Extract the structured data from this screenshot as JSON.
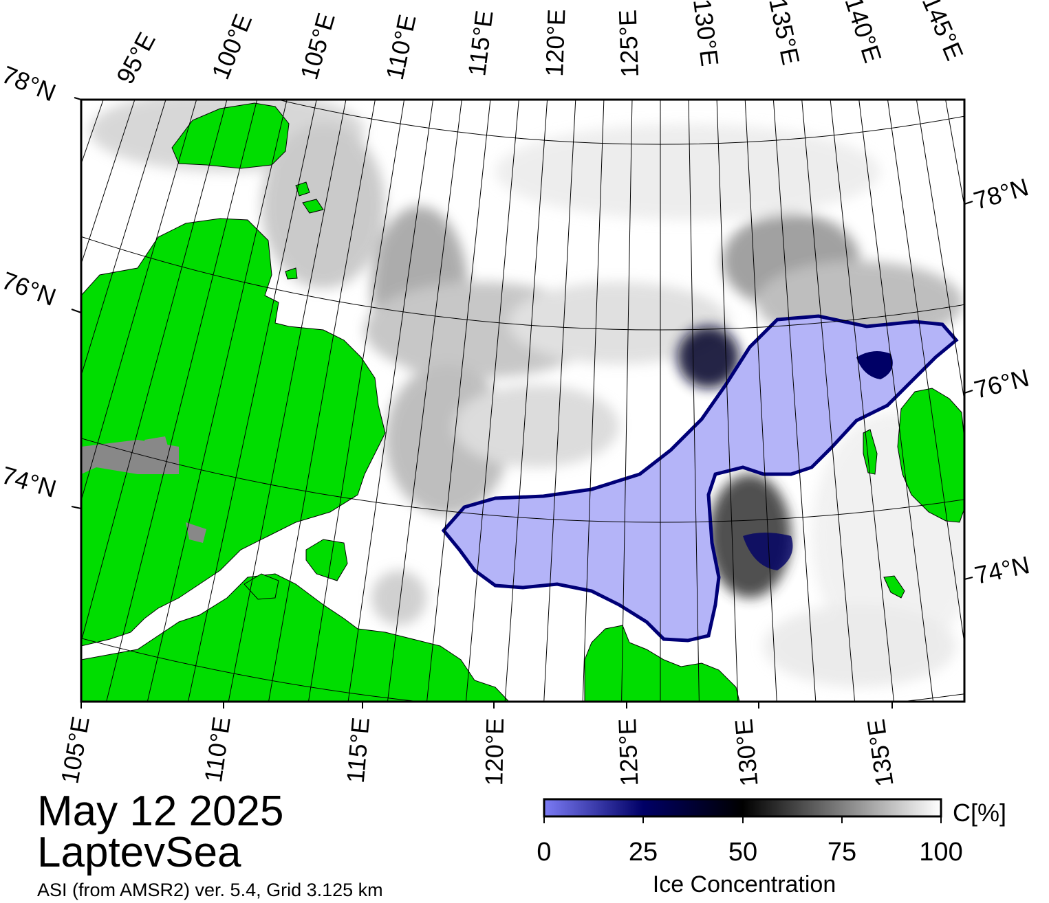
{
  "map": {
    "region": "LaptevSea",
    "date": "May 12 2025",
    "source": "ASI (from AMSR2) ver. 5.4,  Grid 3.125 km",
    "land_color": "#00dd00",
    "coast_mask_color": "#888888",
    "water_color": "#ffffff",
    "top_lon_labels": [
      "95°E",
      "100°E",
      "105°E",
      "110°E",
      "115°E",
      "120°E",
      "125°E",
      "130°E",
      "135°E",
      "140°E",
      "145°E"
    ],
    "bottom_lon_labels": [
      "105°E",
      "110°E",
      "115°E",
      "120°E",
      "125°E",
      "130°E",
      "135°E"
    ],
    "left_lat_labels": [
      "78°N",
      "76°N",
      "74°N"
    ],
    "right_lat_labels": [
      "78°N",
      "76°N",
      "74°N"
    ]
  },
  "colorbar": {
    "title": "Ice Concentration",
    "unit": "C[%]",
    "ticks": [
      "0",
      "25",
      "50",
      "75",
      "100"
    ],
    "stops": [
      {
        "value": 0,
        "color": "#7b7bf4"
      },
      {
        "value": 25,
        "color": "#000066"
      },
      {
        "value": 50,
        "color": "#000000"
      },
      {
        "value": 100,
        "color": "#ffffff"
      }
    ]
  }
}
